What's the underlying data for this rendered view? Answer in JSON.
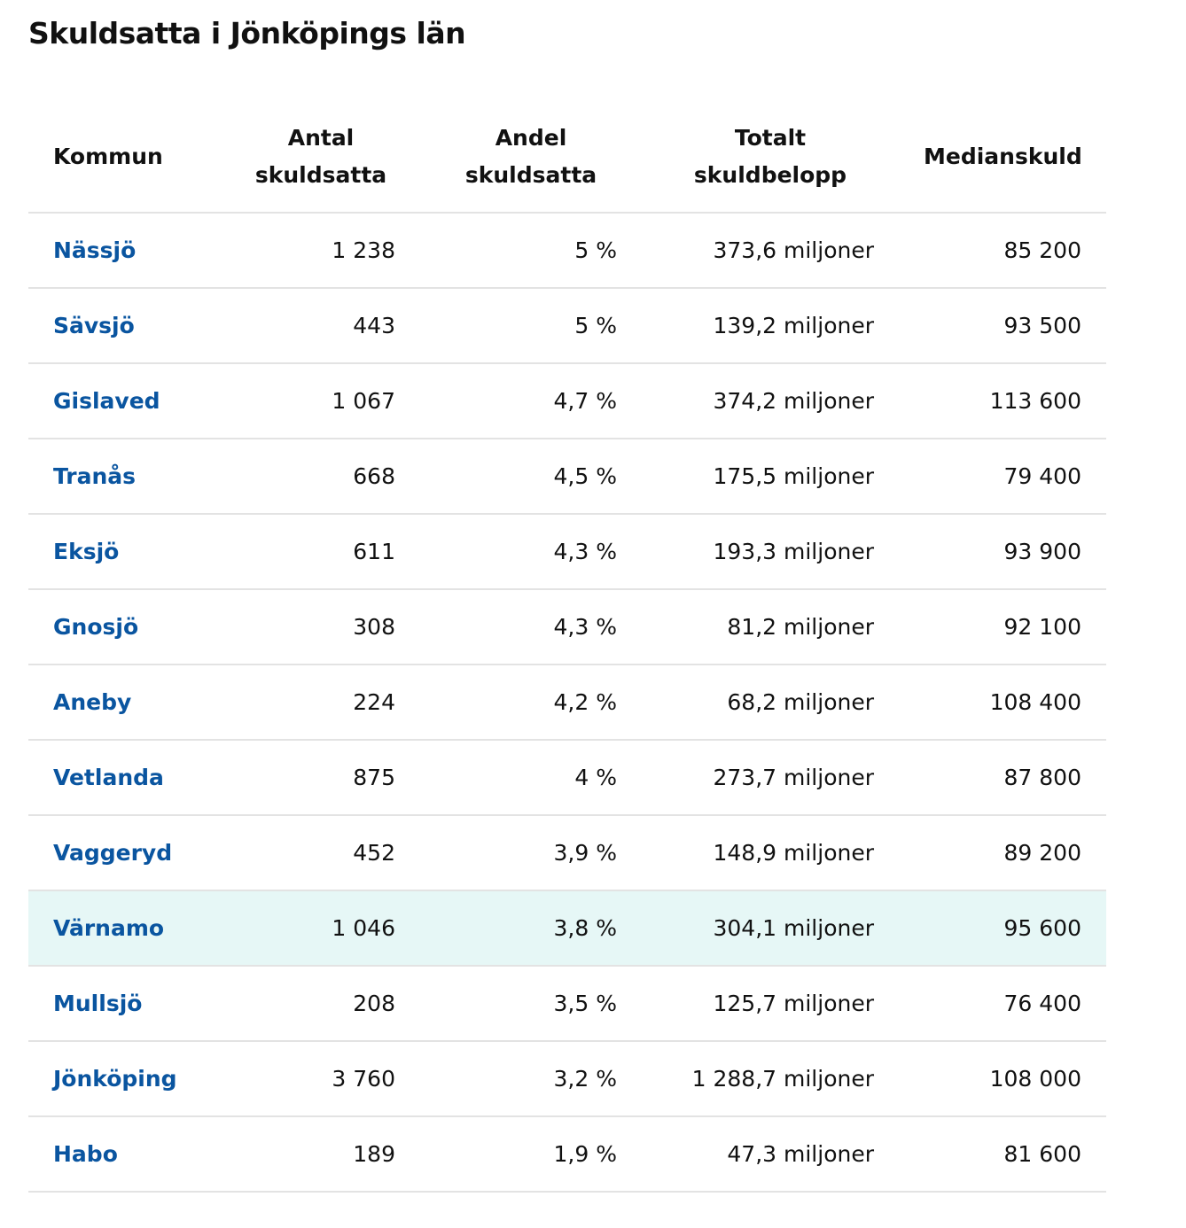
{
  "title": "Skuldsatta i Jönköpings län",
  "colors": {
    "link": "#0a55a0",
    "highlight_row": "#e6f7f6",
    "border": "#e3e3e3"
  },
  "headers": [
    "Kommun",
    "Antal skuldsatta",
    "Andel skuldsatta",
    "Totalt skuldbelopp",
    "Medianskuld"
  ],
  "highlighted_row": "Värnamo",
  "rows": [
    {
      "kommun": "Nässjö",
      "antal": "1 238",
      "andel": "5 %",
      "totalt": "373,6 miljoner",
      "median": "85 200"
    },
    {
      "kommun": "Sävsjö",
      "antal": "443",
      "andel": "5 %",
      "totalt": "139,2 miljoner",
      "median": "93 500"
    },
    {
      "kommun": "Gislaved",
      "antal": "1 067",
      "andel": "4,7 %",
      "totalt": "374,2 miljoner",
      "median": "113 600"
    },
    {
      "kommun": "Tranås",
      "antal": "668",
      "andel": "4,5 %",
      "totalt": "175,5 miljoner",
      "median": "79 400"
    },
    {
      "kommun": "Eksjö",
      "antal": "611",
      "andel": "4,3 %",
      "totalt": "193,3 miljoner",
      "median": "93 900"
    },
    {
      "kommun": "Gnosjö",
      "antal": "308",
      "andel": "4,3 %",
      "totalt": "81,2 miljoner",
      "median": "92 100"
    },
    {
      "kommun": "Aneby",
      "antal": "224",
      "andel": "4,2 %",
      "totalt": "68,2 miljoner",
      "median": "108 400"
    },
    {
      "kommun": "Vetlanda",
      "antal": "875",
      "andel": "4 %",
      "totalt": "273,7 miljoner",
      "median": "87 800"
    },
    {
      "kommun": "Vaggeryd",
      "antal": "452",
      "andel": "3,9 %",
      "totalt": "148,9 miljoner",
      "median": "89 200"
    },
    {
      "kommun": "Värnamo",
      "antal": "1 046",
      "andel": "3,8 %",
      "totalt": "304,1 miljoner",
      "median": "95 600"
    },
    {
      "kommun": "Mullsjö",
      "antal": "208",
      "andel": "3,5 %",
      "totalt": "125,7 miljoner",
      "median": "76 400"
    },
    {
      "kommun": "Jönköping",
      "antal": "3 760",
      "andel": "3,2 %",
      "totalt": "1 288,7 miljoner",
      "median": "108 000"
    },
    {
      "kommun": "Habo",
      "antal": "189",
      "andel": "1,9 %",
      "totalt": "47,3 miljoner",
      "median": "81 600"
    }
  ]
}
